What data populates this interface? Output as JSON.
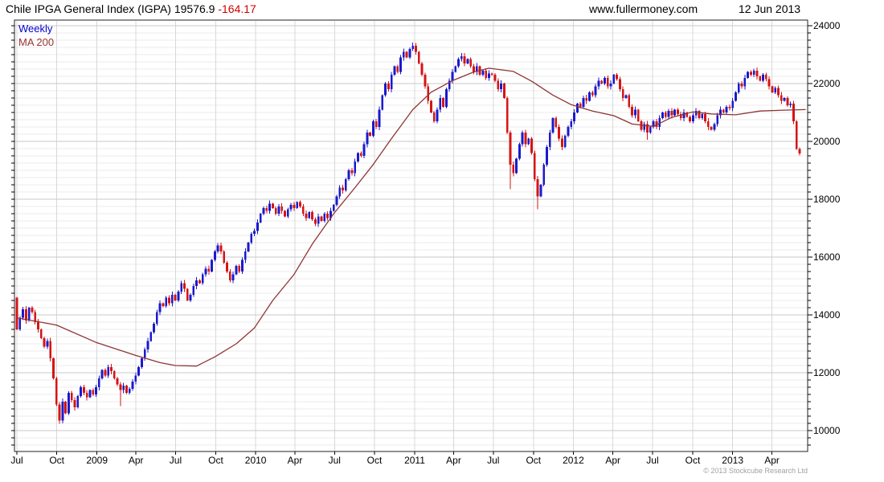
{
  "header": {
    "title_main": "Chile IPGA General Index (IGPA) 19576.9 ",
    "title_change": "-164.17",
    "site": "www.fullermoney.com",
    "date": "12 Jun 2013"
  },
  "legend": {
    "series": "Weekly",
    "overlay": "MA 200"
  },
  "footer": {
    "copyright": "© 2013 Stockcube Research Ltd"
  },
  "colors": {
    "up": "#1a1acd",
    "down": "#d61414",
    "ma": "#8e3434",
    "grid_minor": "#ebebeb",
    "grid_major": "#c9c9c9",
    "grid_vertical": "#d8d8d8",
    "border": "#222222",
    "tick": "#000000",
    "title_change": "#cc0000",
    "legend_weekly": "#0000cc",
    "legend_ma": "#993333"
  },
  "chart_data": {
    "type": "candlestick",
    "title": "Chile IPGA General Index (IGPA)",
    "interval": "Weekly",
    "overlay": "MA 200 (200-day moving average)",
    "last_price": 19576.9,
    "change": -164.17,
    "x_start": "Jul 2008",
    "x_end": "12 Jun 2013",
    "grid": true,
    "legend_position": "top-left",
    "ylim": [
      9278,
      24194
    ],
    "y_major_ticks": [
      10000,
      12000,
      14000,
      16000,
      18000,
      20000,
      22000,
      24000
    ],
    "y_minor_step": 250,
    "x_ticks": [
      {
        "label": "Jul",
        "week": 0
      },
      {
        "label": "Oct",
        "week": 13.1
      },
      {
        "label": "2009",
        "week": 26.3
      },
      {
        "label": "Apr",
        "week": 39.1
      },
      {
        "label": "Jul",
        "week": 52.1
      },
      {
        "label": "Oct",
        "week": 65.3
      },
      {
        "label": "2010",
        "week": 78.4
      },
      {
        "label": "Apr",
        "week": 91.3
      },
      {
        "label": "Jul",
        "week": 104.3
      },
      {
        "label": "Oct",
        "week": 117.4
      },
      {
        "label": "2011",
        "week": 130.6
      },
      {
        "label": "Apr",
        "week": 143.4
      },
      {
        "label": "Jul",
        "week": 156.4
      },
      {
        "label": "Oct",
        "week": 169.6
      },
      {
        "label": "2012",
        "week": 182.7
      },
      {
        "label": "Apr",
        "week": 195.7
      },
      {
        "label": "Jul",
        "week": 208.7
      },
      {
        "label": "Oct",
        "week": 221.9
      },
      {
        "label": "2013",
        "week": 235.0
      },
      {
        "label": "Apr",
        "week": 247.9
      }
    ],
    "first_open": 14600,
    "weekly_closes": [
      13500,
      13900,
      14200,
      13800,
      14250,
      14100,
      13750,
      13500,
      13200,
      12900,
      13100,
      12500,
      11800,
      10900,
      10350,
      11000,
      10600,
      11300,
      11050,
      10800,
      11200,
      11500,
      11300,
      11150,
      11400,
      11250,
      11500,
      11800,
      12100,
      11900,
      12200,
      12050,
      11800,
      11600,
      11400,
      11550,
      11300,
      11450,
      11700,
      11900,
      12200,
      12500,
      12800,
      13100,
      13400,
      13700,
      14100,
      14400,
      14300,
      14600,
      14400,
      14700,
      14500,
      14800,
      15100,
      14900,
      14500,
      14700,
      15000,
      15200,
      15100,
      15400,
      15600,
      15500,
      15900,
      16200,
      16400,
      16200,
      15800,
      15500,
      15200,
      15400,
      15700,
      15500,
      15900,
      16200,
      16500,
      16800,
      16900,
      17200,
      17500,
      17700,
      17600,
      17850,
      17700,
      17500,
      17750,
      17600,
      17400,
      17650,
      17800,
      17700,
      17900,
      17750,
      17500,
      17350,
      17550,
      17300,
      17150,
      17400,
      17250,
      17500,
      17350,
      17600,
      17800,
      18100,
      18400,
      18300,
      18700,
      19000,
      18900,
      19300,
      19600,
      19500,
      19900,
      20300,
      20200,
      20700,
      20500,
      21100,
      21600,
      22000,
      21800,
      22300,
      22600,
      22400,
      22900,
      23100,
      22900,
      23200,
      23300,
      23100,
      22700,
      22300,
      21900,
      21400,
      21000,
      20700,
      21100,
      21500,
      21200,
      21800,
      22100,
      22400,
      22600,
      22850,
      22950,
      22700,
      22850,
      22600,
      22400,
      22600,
      22300,
      22450,
      22200,
      22350,
      22300,
      22100,
      21800,
      22000,
      21500,
      20300,
      19200,
      18900,
      19400,
      19900,
      20300,
      19900,
      20100,
      19600,
      18700,
      18100,
      18500,
      19200,
      19800,
      20300,
      20800,
      20500,
      20100,
      19800,
      20200,
      20500,
      20700,
      21000,
      21300,
      21200,
      21500,
      21400,
      21700,
      21600,
      21900,
      22100,
      22000,
      22200,
      21900,
      22000,
      22300,
      22150,
      21800,
      21500,
      21600,
      21200,
      20900,
      21100,
      20700,
      20400,
      20600,
      20300,
      20500,
      20700,
      20500,
      20800,
      21000,
      20850,
      21050,
      20900,
      21100,
      20950,
      20800,
      21000,
      20850,
      20700,
      20900,
      21050,
      20800,
      20950,
      20700,
      20500,
      20400,
      20600,
      20900,
      21100,
      21000,
      21200,
      21150,
      21400,
      21700,
      22000,
      21900,
      22200,
      22400,
      22300,
      22450,
      22250,
      22100,
      22300,
      22150,
      21900,
      21700,
      21850,
      21600,
      21400,
      21500,
      21250,
      21300,
      20700,
      19741.1,
      19576.9
    ],
    "special_wicks": {
      "14": {
        "low": 10230
      },
      "34": {
        "low": 10850
      },
      "130": {
        "high": 23420
      },
      "146": {
        "high": 23060
      },
      "162": {
        "low": 18350
      },
      "171": {
        "low": 17650
      },
      "207": {
        "low": 20050
      },
      "242": {
        "high": 22520
      },
      "257": {
        "low": 19520
      }
    },
    "ma200": [
      [
        0,
        13900
      ],
      [
        13,
        13650
      ],
      [
        26,
        13050
      ],
      [
        39,
        12600
      ],
      [
        47,
        12350
      ],
      [
        52,
        12250
      ],
      [
        59,
        12230
      ],
      [
        65,
        12550
      ],
      [
        72,
        13000
      ],
      [
        78,
        13550
      ],
      [
        84,
        14500
      ],
      [
        91,
        15400
      ],
      [
        97,
        16450
      ],
      [
        104,
        17500
      ],
      [
        111,
        18400
      ],
      [
        117,
        19200
      ],
      [
        123,
        20100
      ],
      [
        130,
        21100
      ],
      [
        136,
        21700
      ],
      [
        143,
        22100
      ],
      [
        150,
        22400
      ],
      [
        155,
        22530
      ],
      [
        163,
        22420
      ],
      [
        169,
        22080
      ],
      [
        176,
        21600
      ],
      [
        182,
        21270
      ],
      [
        189,
        21050
      ],
      [
        196,
        20890
      ],
      [
        202,
        20600
      ],
      [
        209,
        20520
      ],
      [
        215,
        20830
      ],
      [
        222,
        21020
      ],
      [
        228,
        20950
      ],
      [
        236,
        20920
      ],
      [
        244,
        21050
      ],
      [
        252,
        21080
      ],
      [
        259,
        21100
      ]
    ]
  }
}
